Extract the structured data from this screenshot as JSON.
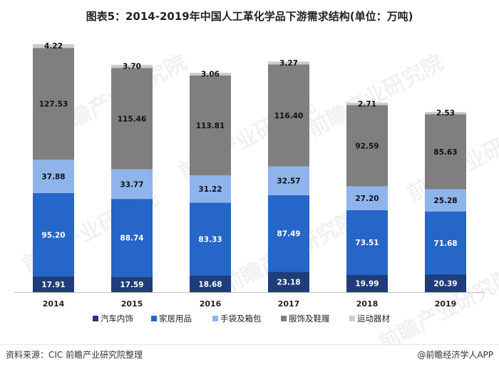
{
  "title": "图表5：2014-2019年中国人工革化学品下游需求结构(单位：万吨)",
  "watermark": "前瞻产业研究院",
  "footer": {
    "source": "资料来源：CIC 前瞻产业研究院整理",
    "brand": "@前瞻经济学人APP"
  },
  "chart_data": {
    "type": "bar",
    "stacked": true,
    "title": "图表5：2014-2019年中国人工革化学品下游需求结构(单位：万吨)",
    "xlabel": "",
    "ylabel": "",
    "categories": [
      "2014",
      "2015",
      "2016",
      "2017",
      "2018",
      "2019"
    ],
    "series": [
      {
        "name": "汽车内饰",
        "color": "#1f3d7a",
        "values": [
          17.91,
          17.59,
          18.68,
          23.18,
          19.99,
          20.39
        ]
      },
      {
        "name": "家居用品",
        "color": "#2566c8",
        "values": [
          95.2,
          88.74,
          83.33,
          87.49,
          73.51,
          71.68
        ]
      },
      {
        "name": "手袋及箱包",
        "color": "#8fb4ec",
        "values": [
          37.88,
          33.77,
          31.22,
          32.57,
          27.2,
          25.28
        ]
      },
      {
        "name": "服饰及鞋履",
        "color": "#7f7f7f",
        "values": [
          127.53,
          115.46,
          113.81,
          116.4,
          92.59,
          85.63
        ]
      },
      {
        "name": "运动器材",
        "color": "#cccccc",
        "values": [
          4.22,
          3.7,
          3.06,
          3.27,
          2.71,
          2.53
        ]
      }
    ],
    "value_labels": [
      [
        "17.91",
        "17.59",
        "18.68",
        "23.18",
        "19.99",
        "20.39"
      ],
      [
        "95.20",
        "88.74",
        "83.33",
        "87.49",
        "73.51",
        "71.68"
      ],
      [
        "37.88",
        "33.77",
        "31.22",
        "32.57",
        "27.20",
        "25.28"
      ],
      [
        "127.53",
        "115.46",
        "113.81",
        "116.40",
        "92.59",
        "85.63"
      ],
      [
        "4.22",
        "3.70",
        "3.06",
        "3.27",
        "2.71",
        "2.53"
      ]
    ],
    "legend_position": "bottom",
    "grid": false
  }
}
